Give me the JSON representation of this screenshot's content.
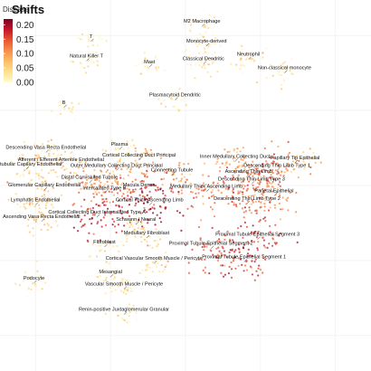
{
  "chart_data": {
    "type": "scatter",
    "title": "Shifts",
    "subtitle": "Disease",
    "legend": {
      "title": "Shifts",
      "placement": "top-left",
      "ticks": [
        "0.20",
        "0.15",
        "0.10",
        "0.05",
        "0.00"
      ],
      "tick_values": [
        0.2,
        0.15,
        0.1,
        0.05,
        0.0
      ],
      "range": [
        0.0,
        0.22
      ],
      "colors": [
        "#fffbd0",
        "#fde18e",
        "#fdbd68",
        "#f78d4c",
        "#e8552f",
        "#c5162a",
        "#7c0024"
      ]
    },
    "grid": true,
    "xlim": [
      -12,
      12
    ],
    "ylim": [
      -12,
      12
    ],
    "clusters": [
      {
        "name": "T",
        "x": -6.3,
        "y": 9.6,
        "shift": 0.02
      },
      {
        "name": "Natural Killer T",
        "x": -6.6,
        "y": 8.3,
        "shift": 0.02
      },
      {
        "name": "Mast",
        "x": -2.4,
        "y": 7.9,
        "shift": 0.02
      },
      {
        "name": "M2 Macrophage",
        "x": 1.1,
        "y": 10.6,
        "shift": 0.03
      },
      {
        "name": "Monocyte-derived",
        "x": 1.4,
        "y": 9.3,
        "shift": 0.03
      },
      {
        "name": "Classical Dendritic",
        "x": 1.2,
        "y": 8.1,
        "shift": 0.03
      },
      {
        "name": "Neutrophil",
        "x": 4.2,
        "y": 8.4,
        "shift": 0.04
      },
      {
        "name": "Non-classical monocyte",
        "x": 6.6,
        "y": 7.5,
        "shift": 0.03
      },
      {
        "name": "Plasmacytoid Dendritic",
        "x": -0.7,
        "y": 5.7,
        "shift": 0.02
      },
      {
        "name": "B",
        "x": -8.1,
        "y": 5.2,
        "shift": 0.02
      },
      {
        "name": "Plasma",
        "x": -4.4,
        "y": 2.4,
        "shift": 0.03
      },
      {
        "name": "Cortical Collecting Duct Principal",
        "x": -3.1,
        "y": 1.7,
        "shift": 0.08
      },
      {
        "name": "Outer Medullary Collecting Duct Principal",
        "x": -4.6,
        "y": 1.0,
        "shift": 0.09
      },
      {
        "name": "Connecting Tubule",
        "x": -0.9,
        "y": 0.7,
        "shift": 0.1
      },
      {
        "name": "Distal Convoluted Tubule",
        "x": -6.4,
        "y": 0.2,
        "shift": 0.1
      },
      {
        "name": "Macula Densa",
        "x": -3.1,
        "y": -0.3,
        "shift": 0.16
      },
      {
        "name": "Intercalated Type B",
        "x": -5.4,
        "y": -0.5,
        "shift": 0.12
      },
      {
        "name": "Cortical Thick Ascending Limb",
        "x": -2.4,
        "y": -1.3,
        "shift": 0.2
      },
      {
        "name": "Cortical Collecting Duct Intercalated Type A",
        "x": -5.9,
        "y": -2.1,
        "shift": 0.18
      },
      {
        "name": "Medullary Thick Ascending Limb",
        "x": 1.4,
        "y": -0.4,
        "shift": 0.12
      },
      {
        "name": "Inner Medullary Collecting Duct",
        "x": 3.3,
        "y": 1.6,
        "shift": 0.09
      },
      {
        "name": "Ascending Thin Limb",
        "x": 4.2,
        "y": 0.6,
        "shift": 0.12
      },
      {
        "name": "Descending Thin Limb Type 3",
        "x": 4.4,
        "y": 0.1,
        "shift": 0.13
      },
      {
        "name": "Descending Thin Limb Type 2",
        "x": 4.1,
        "y": -1.2,
        "shift": 0.14
      },
      {
        "name": "Descending Thin Limb Type 1",
        "x": 6.1,
        "y": 1.0,
        "shift": 0.14
      },
      {
        "name": "Papillary Tip Epithelial",
        "x": 7.3,
        "y": 1.5,
        "shift": 0.07
      },
      {
        "name": "Parietal Epithelial",
        "x": 5.9,
        "y": -0.7,
        "shift": 0.11
      },
      {
        "name": "Proximal Tubule Epithelial Segment 3",
        "x": 4.8,
        "y": -3.6,
        "shift": 0.16
      },
      {
        "name": "Proximal Tubule Epithelial Segment 2",
        "x": 1.7,
        "y": -4.2,
        "shift": 0.15
      },
      {
        "name": "Proximal Tubule Epithelial Segment 1",
        "x": 3.9,
        "y": -5.1,
        "shift": 0.17
      },
      {
        "name": "Schwann / Neural",
        "x": -3.3,
        "y": -2.6,
        "shift": 0.04
      },
      {
        "name": "Medullary Fibroblast",
        "x": -2.6,
        "y": -3.5,
        "shift": 0.05
      },
      {
        "name": "Fibroblast",
        "x": -5.4,
        "y": -4.1,
        "shift": 0.03
      },
      {
        "name": "Cortical Vascular Smooth Muscle / Pericyte",
        "x": -2.1,
        "y": -5.2,
        "shift": 0.04
      },
      {
        "name": "Mesangial",
        "x": -5.0,
        "y": -6.1,
        "shift": 0.03
      },
      {
        "name": "Vascular Smooth Muscle / Pericyte",
        "x": -4.1,
        "y": -6.9,
        "shift": 0.03
      },
      {
        "name": "Renin-positive Juxtaglomerular Granular",
        "x": -4.1,
        "y": -8.6,
        "shift": 0.02
      },
      {
        "name": "Descending Vasa Recta Endothelial",
        "x": -9.3,
        "y": 2.2,
        "shift": 0.05
      },
      {
        "name": "Afferent / Efferent Arteriole Endothelial",
        "x": -8.3,
        "y": 1.4,
        "shift": 0.07
      },
      {
        "name": "Peritubular Capilary Endothelial",
        "x": -10.6,
        "y": 1.1,
        "shift": 0.05
      },
      {
        "name": "Glomerular Capillary Endothelial",
        "x": -9.4,
        "y": -0.3,
        "shift": 0.06
      },
      {
        "name": "Lymphatic Endothelial",
        "x": -10.0,
        "y": -1.3,
        "shift": 0.05
      },
      {
        "name": "Ascending Vasa Recta Endothelial",
        "x": -9.6,
        "y": -2.4,
        "shift": 0.06
      },
      {
        "name": "Podocyte",
        "x": -10.1,
        "y": -6.5,
        "shift": 0.03
      }
    ]
  }
}
